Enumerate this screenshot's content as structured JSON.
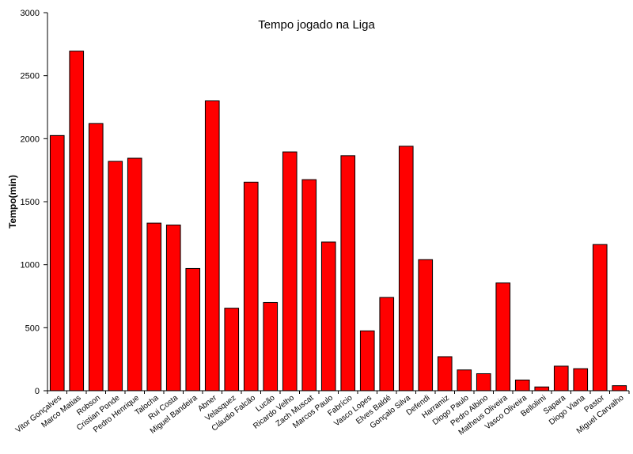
{
  "chart_data": {
    "type": "bar",
    "title": "Tempo jogado na Liga",
    "xlabel": "",
    "ylabel": "Tempo(min)",
    "ylim": [
      0,
      3000
    ],
    "yticks": [
      "0",
      "500",
      "1000",
      "1500",
      "2000",
      "2500",
      "3000"
    ],
    "grid": false,
    "bar_color": "#FF0000",
    "categories": [
      "Vitor Gonçalves",
      "Marco Matias",
      "Robson",
      "Cristian Ponde",
      "Pedro Henrique",
      "Talocha",
      "Rui Costa",
      "Miguel Bandeira",
      "Abner",
      "Velasquez",
      "Cláudio Falcão",
      "Lucão",
      "Ricardo Velho",
      "Zach Muscat",
      "Marcos Paulo",
      "Fabrício",
      "Vasco Lopes",
      "Elves Baldé",
      "Gonçalo Silva",
      "Defendi",
      "Harramiz",
      "Diogo Paulo",
      "Pedro Albino",
      "Matheus Oliveira",
      "Vasco Oliveira",
      "Bellolimi",
      "Sapara",
      "Diogo Viana",
      "Pastor",
      "Miguel Carvalho"
    ],
    "values": [
      2025,
      2695,
      2120,
      1820,
      1845,
      1330,
      1315,
      970,
      2300,
      655,
      1655,
      700,
      1895,
      1675,
      1180,
      1865,
      475,
      740,
      1940,
      1040,
      270,
      165,
      135,
      855,
      85,
      30,
      195,
      175,
      1160,
      40
    ]
  }
}
